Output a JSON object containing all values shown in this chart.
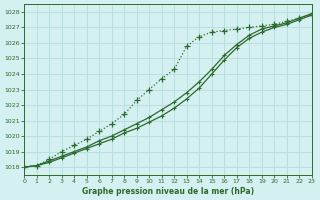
{
  "title": "Graphe pression niveau de la mer (hPa)",
  "bg_color": "#d4f0f0",
  "grid_color": "#b8e0e0",
  "line_color": "#2d6a2d",
  "xlim": [
    0,
    23
  ],
  "ylim": [
    1017.5,
    1028.5
  ],
  "yticks": [
    1018,
    1019,
    1020,
    1021,
    1022,
    1023,
    1024,
    1025,
    1026,
    1027,
    1028
  ],
  "xticks": [
    0,
    1,
    2,
    3,
    4,
    5,
    6,
    7,
    8,
    9,
    10,
    11,
    12,
    13,
    14,
    15,
    16,
    17,
    18,
    19,
    20,
    21,
    22,
    23
  ],
  "series1_x": [
    0,
    1,
    2,
    3,
    4,
    5,
    6,
    7,
    8,
    9,
    10,
    11,
    12,
    13,
    14,
    15,
    16,
    17,
    18,
    19,
    20,
    21,
    22,
    23
  ],
  "series1_y": [
    1018.0,
    1018.1,
    1018.5,
    1019.0,
    1019.4,
    1019.8,
    1020.3,
    1020.8,
    1021.4,
    1022.3,
    1023.0,
    1023.7,
    1024.3,
    1025.8,
    1026.4,
    1026.7,
    1026.8,
    1026.9,
    1027.0,
    1027.1,
    1027.2,
    1027.4,
    1027.6,
    1027.8
  ],
  "series2_x": [
    0,
    1,
    2,
    3,
    4,
    5,
    6,
    7,
    8,
    9,
    10,
    11,
    12,
    13,
    14,
    15,
    16,
    17,
    18,
    19,
    20,
    21,
    22,
    23
  ],
  "series2_y": [
    1018.0,
    1018.1,
    1018.4,
    1018.7,
    1019.0,
    1019.3,
    1019.7,
    1020.0,
    1020.4,
    1020.8,
    1021.2,
    1021.7,
    1022.2,
    1022.8,
    1023.5,
    1024.3,
    1025.2,
    1025.9,
    1026.5,
    1026.9,
    1027.1,
    1027.3,
    1027.6,
    1027.9
  ],
  "series3_x": [
    0,
    1,
    2,
    3,
    4,
    5,
    6,
    7,
    8,
    9,
    10,
    11,
    12,
    13,
    14,
    15,
    16,
    17,
    18,
    19,
    20,
    21,
    22,
    23
  ],
  "series3_y": [
    1018.0,
    1018.1,
    1018.3,
    1018.6,
    1018.9,
    1019.2,
    1019.5,
    1019.8,
    1020.2,
    1020.5,
    1020.9,
    1021.3,
    1021.8,
    1022.4,
    1023.1,
    1024.0,
    1024.9,
    1025.7,
    1026.3,
    1026.7,
    1027.0,
    1027.2,
    1027.5,
    1027.8
  ]
}
